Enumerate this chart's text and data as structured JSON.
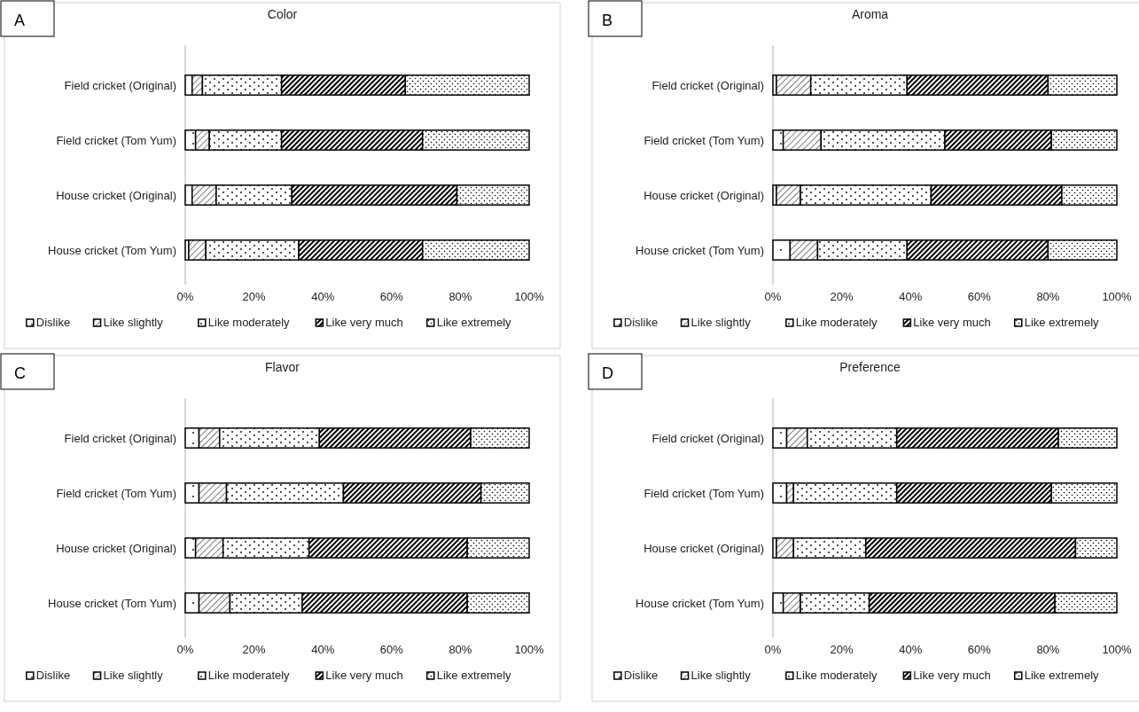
{
  "chart_data": [
    {
      "type": "bar",
      "orientation": "horizontal",
      "stacked": true,
      "title": "Color",
      "annotations": [
        "A"
      ],
      "categories": [
        "Field cricket (Original)",
        "Field cricket (Tom Yum)",
        "House cricket (Original)",
        "House cricket (Tom Yum)"
      ],
      "xlim": [
        0,
        100
      ],
      "xticks": [
        {
          "value": 0,
          "label": "0%"
        },
        {
          "value": 20,
          "label": "20%"
        },
        {
          "value": 40,
          "label": "40%"
        },
        {
          "value": 60,
          "label": "60%"
        },
        {
          "value": 80,
          "label": "80%"
        },
        {
          "value": 100,
          "label": "100%"
        }
      ],
      "legend": "bottom",
      "grid": false,
      "series": [
        {
          "name": "Dislike",
          "color": "#000000",
          "values": [
            2,
            3,
            2,
            1
          ]
        },
        {
          "name": "Like slightly",
          "color": "#000000",
          "values": [
            3,
            4,
            7,
            5
          ]
        },
        {
          "name": "Like moderately",
          "color": "#000000",
          "values": [
            23,
            21,
            22,
            27
          ]
        },
        {
          "name": "Like very much",
          "color": "#000000",
          "values": [
            36,
            41,
            48,
            36
          ]
        },
        {
          "name": "Like extremely",
          "color": "#000000",
          "values": [
            36,
            31,
            21,
            31
          ]
        }
      ]
    },
    {
      "type": "bar",
      "orientation": "horizontal",
      "stacked": true,
      "title": "Aroma",
      "annotations": [
        "B"
      ],
      "categories": [
        "Field cricket (Original)",
        "Field cricket (Tom Yum)",
        "House cricket (Original)",
        "House cricket (Tom Yum)"
      ],
      "xlim": [
        0,
        100
      ],
      "xticks": [
        {
          "value": 0,
          "label": "0%"
        },
        {
          "value": 20,
          "label": "20%"
        },
        {
          "value": 40,
          "label": "40%"
        },
        {
          "value": 60,
          "label": "60%"
        },
        {
          "value": 80,
          "label": "80%"
        },
        {
          "value": 100,
          "label": "100%"
        }
      ],
      "legend": "bottom",
      "grid": false,
      "series": [
        {
          "name": "Dislike",
          "color": "#000000",
          "values": [
            1,
            3,
            1,
            5
          ]
        },
        {
          "name": "Like slightly",
          "color": "#000000",
          "values": [
            10,
            11,
            7,
            8
          ]
        },
        {
          "name": "Like moderately",
          "color": "#000000",
          "values": [
            28,
            36,
            38,
            26
          ]
        },
        {
          "name": "Like very much",
          "color": "#000000",
          "values": [
            41,
            31,
            38,
            41
          ]
        },
        {
          "name": "Like extremely",
          "color": "#000000",
          "values": [
            20,
            19,
            16,
            20
          ]
        }
      ]
    },
    {
      "type": "bar",
      "orientation": "horizontal",
      "stacked": true,
      "title": "Flavor",
      "annotations": [
        "C"
      ],
      "categories": [
        "Field cricket (Original)",
        "Field cricket (Tom Yum)",
        "House cricket (Original)",
        "House cricket (Tom Yum)"
      ],
      "xlim": [
        0,
        100
      ],
      "xticks": [
        {
          "value": 0,
          "label": "0%"
        },
        {
          "value": 20,
          "label": "20%"
        },
        {
          "value": 40,
          "label": "40%"
        },
        {
          "value": 60,
          "label": "60%"
        },
        {
          "value": 80,
          "label": "80%"
        },
        {
          "value": 100,
          "label": "100%"
        }
      ],
      "legend": "bottom",
      "grid": false,
      "series": [
        {
          "name": "Dislike",
          "color": "#000000",
          "values": [
            4,
            4,
            3,
            4
          ]
        },
        {
          "name": "Like slightly",
          "color": "#000000",
          "values": [
            6,
            8,
            8,
            9
          ]
        },
        {
          "name": "Like moderately",
          "color": "#000000",
          "values": [
            29,
            34,
            25,
            21
          ]
        },
        {
          "name": "Like very much",
          "color": "#000000",
          "values": [
            44,
            40,
            46,
            48
          ]
        },
        {
          "name": "Like extremely",
          "color": "#000000",
          "values": [
            17,
            14,
            18,
            18
          ]
        }
      ]
    },
    {
      "type": "bar",
      "orientation": "horizontal",
      "stacked": true,
      "title": "Preference",
      "annotations": [
        "D"
      ],
      "categories": [
        "Field cricket (Original)",
        "Field cricket (Tom Yum)",
        "House cricket (Original)",
        "House cricket (Tom Yum)"
      ],
      "xlim": [
        0,
        100
      ],
      "xticks": [
        {
          "value": 0,
          "label": "0%"
        },
        {
          "value": 20,
          "label": "20%"
        },
        {
          "value": 40,
          "label": "40%"
        },
        {
          "value": 60,
          "label": "60%"
        },
        {
          "value": 80,
          "label": "80%"
        },
        {
          "value": 100,
          "label": "100%"
        }
      ],
      "legend": "bottom",
      "grid": false,
      "series": [
        {
          "name": "Dislike",
          "color": "#000000",
          "values": [
            4,
            4,
            1,
            3
          ]
        },
        {
          "name": "Like slightly",
          "color": "#000000",
          "values": [
            6,
            2,
            5,
            5
          ]
        },
        {
          "name": "Like moderately",
          "color": "#000000",
          "values": [
            26,
            30,
            21,
            20
          ]
        },
        {
          "name": "Like very much",
          "color": "#000000",
          "values": [
            47,
            45,
            61,
            54
          ]
        },
        {
          "name": "Like extremely",
          "color": "#000000",
          "values": [
            17,
            19,
            12,
            18
          ]
        }
      ]
    }
  ]
}
